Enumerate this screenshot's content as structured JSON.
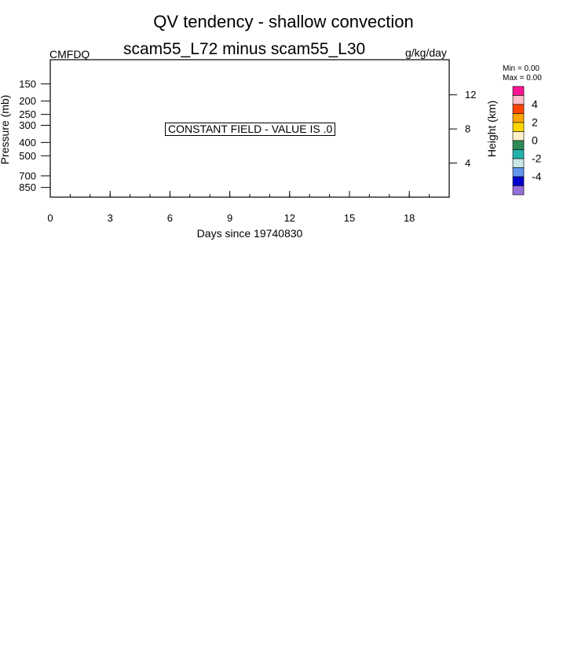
{
  "title": "QV tendency - shallow convection",
  "subtitle": "scam55_L72 minus scam55_L30",
  "left_label": "CMFDQ",
  "right_label": "g/kg/day",
  "constant_field_text": "CONSTANT FIELD - VALUE IS .0",
  "colorbar": {
    "min_label": "Min =   0.00",
    "max_label": "Max =   0.00",
    "tick_labels": [
      "4",
      "2",
      "0",
      "-2",
      "-4"
    ],
    "colors": [
      "#ff1493",
      "#ffc0cb",
      "#ff4500",
      "#ffa500",
      "#ffd700",
      "#fff0c8",
      "#2e8b57",
      "#20b2aa",
      "#c8e6e6",
      "#6495ed",
      "#0000cd",
      "#9370db"
    ]
  },
  "chart_data": {
    "type": "heatmap",
    "title": "QV tendency - shallow convection",
    "subtitle": "scam55_L72 minus scam55_L30",
    "xlabel": "Days since 19740830",
    "ylabel": "Pressure (mb)",
    "ylabel_right": "Height (km)",
    "units": "g/kg/day",
    "variable": "CMFDQ",
    "xlim": [
      0,
      20
    ],
    "x_ticks": [
      0,
      3,
      6,
      9,
      12,
      15,
      18
    ],
    "y_ticks_pressure": [
      150,
      200,
      250,
      300,
      400,
      500,
      700,
      850
    ],
    "y_ticks_height": [
      12,
      8,
      4
    ],
    "constant_value": 0.0,
    "min": 0.0,
    "max": 0.0,
    "grid": false
  }
}
